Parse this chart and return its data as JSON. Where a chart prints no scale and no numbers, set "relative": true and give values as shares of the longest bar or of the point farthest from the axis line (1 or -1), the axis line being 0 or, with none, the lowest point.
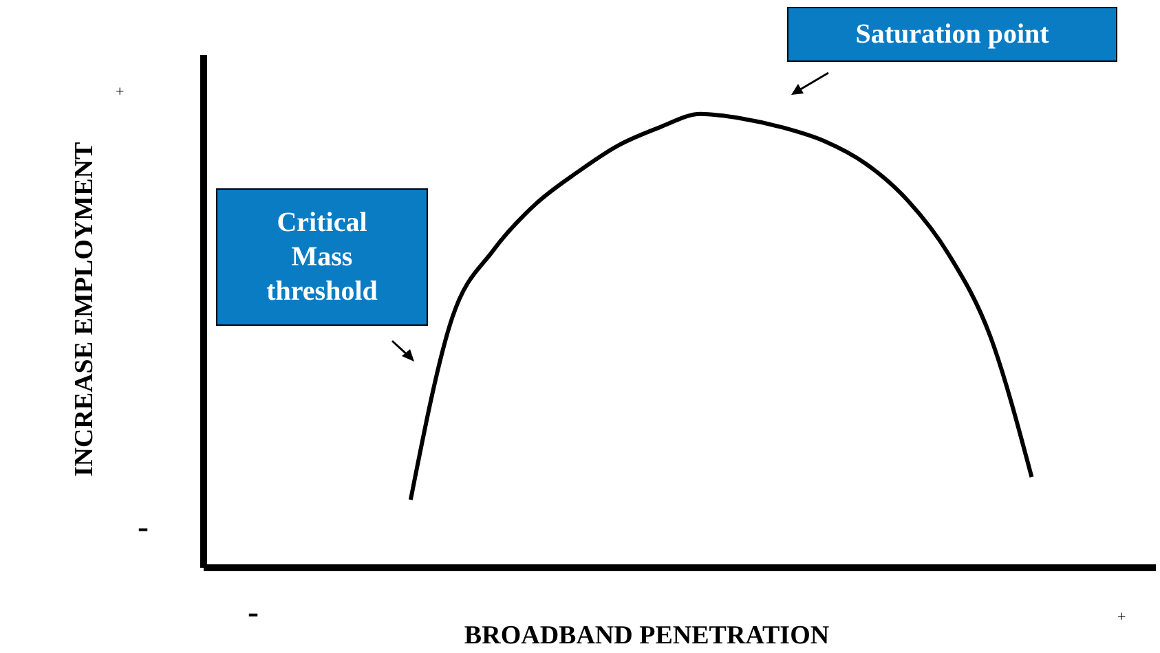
{
  "chart_data": {
    "type": "line",
    "relative": true,
    "xlabel": "BROADBAND PENETRATION",
    "ylabel": "INCREASE EMPLOYMENT",
    "categories": [
      null,
      null,
      null,
      null,
      null,
      null,
      null,
      null,
      null,
      null,
      null,
      null,
      null,
      null,
      null,
      null,
      null,
      null,
      null,
      null,
      null,
      null,
      null,
      null
    ],
    "series": [
      {
        "color": "#000000",
        "values": [
          null,
          null,
          null,
          null,
          null,
          0.15,
          0.55,
          0.7,
          0.8,
          0.87,
          0.93,
          0.97,
          1.0,
          0.99,
          0.97,
          0.94,
          0.89,
          0.81,
          0.69,
          0.51,
          0.2,
          null,
          null,
          null
        ]
      }
    ],
    "annotations": [
      "+",
      "-",
      "-",
      "+",
      "Critical Mass threshold",
      "Saturation point"
    ]
  }
}
